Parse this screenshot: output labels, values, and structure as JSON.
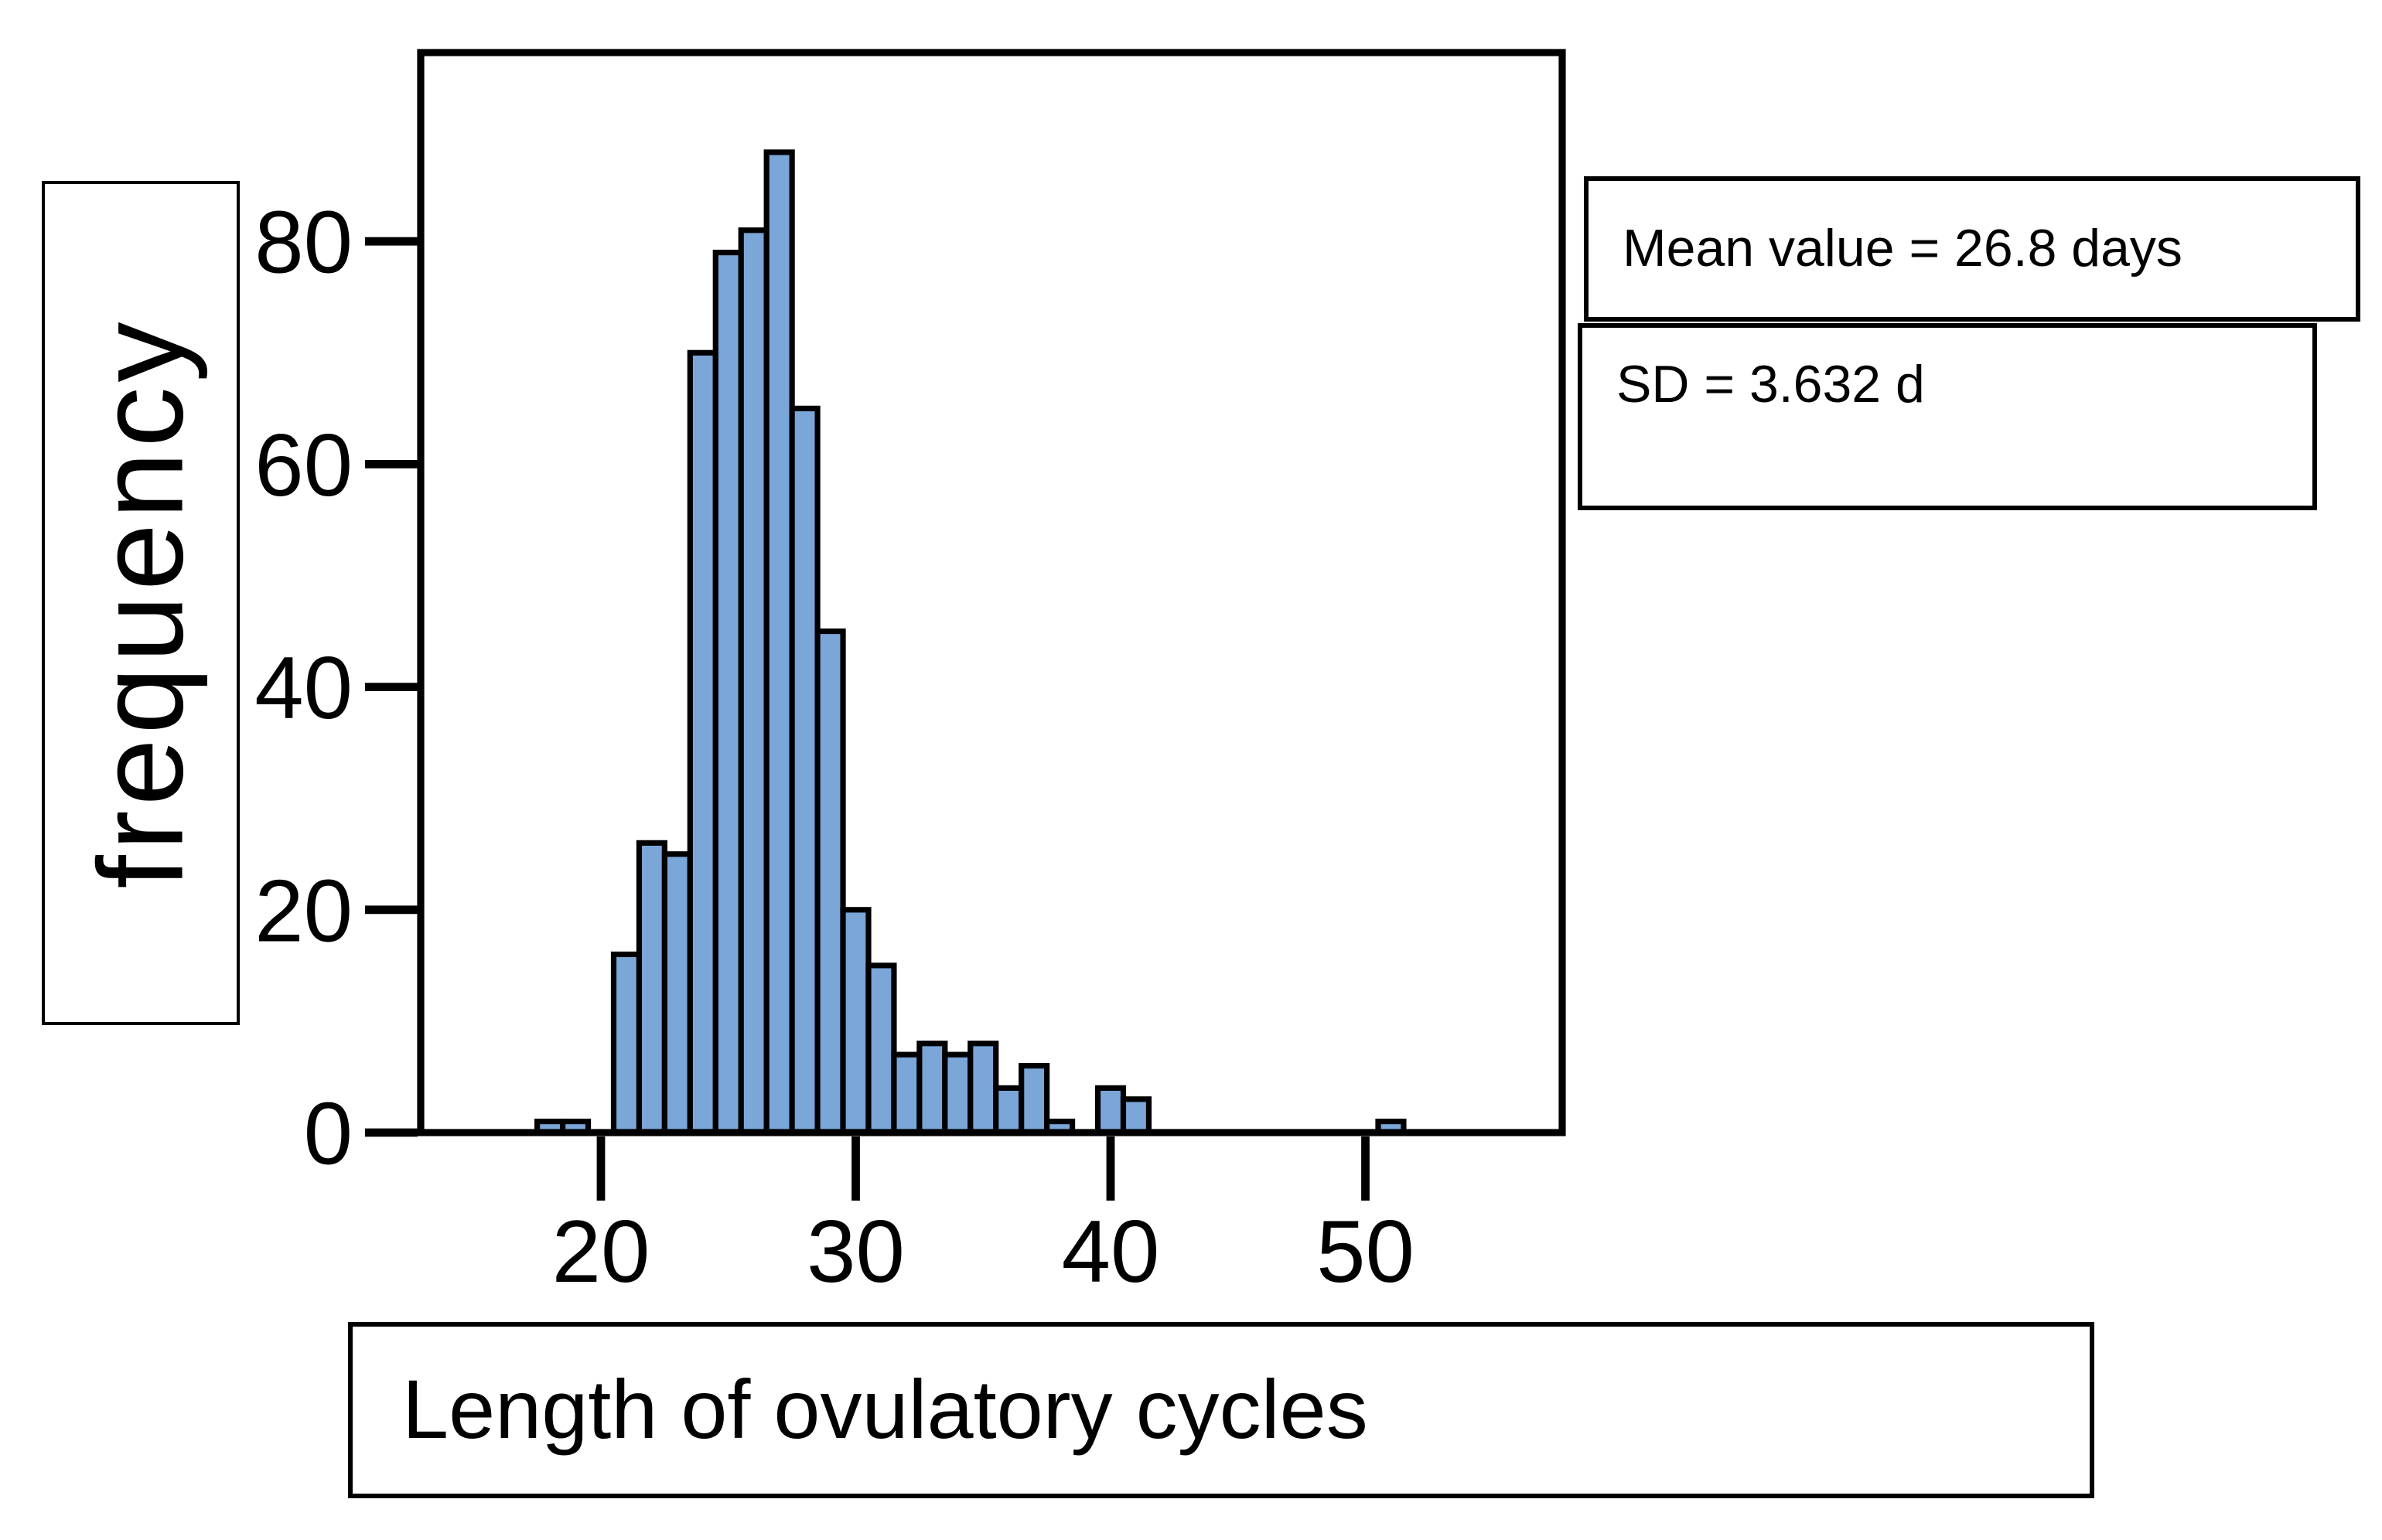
{
  "texts": {
    "y_axis_label": "frequency",
    "x_axis_label": "Length of ovulatory cycles",
    "mean_annotation": "Mean value = 26.8 days",
    "sd_annotation": "SD = 3.632 d"
  },
  "colors": {
    "bar_fill": "#7aa6d8",
    "bar_stroke": "#000000",
    "axis": "#000000",
    "background": "#ffffff"
  },
  "chart_data": {
    "type": "bar",
    "subtype": "histogram",
    "title": "",
    "xlabel": "Length of ovulatory cycles",
    "ylabel": "frequency",
    "bin_width": 1,
    "x_ticks": [
      20,
      30,
      40,
      50
    ],
    "y_ticks": [
      0,
      20,
      40,
      60,
      80
    ],
    "xlim": [
      13,
      57.7
    ],
    "ylim": [
      0,
      97
    ],
    "grid": false,
    "legend": false,
    "annotations": [
      "Mean value = 26.8 days",
      "SD = 3.632 d"
    ],
    "bins": [
      {
        "x": 18,
        "count": 1
      },
      {
        "x": 19,
        "count": 1
      },
      {
        "x": 20,
        "count": 0
      },
      {
        "x": 21,
        "count": 16
      },
      {
        "x": 22,
        "count": 26
      },
      {
        "x": 23,
        "count": 25
      },
      {
        "x": 24,
        "count": 70
      },
      {
        "x": 25,
        "count": 79
      },
      {
        "x": 26,
        "count": 81
      },
      {
        "x": 27,
        "count": 88
      },
      {
        "x": 28,
        "count": 65
      },
      {
        "x": 29,
        "count": 45
      },
      {
        "x": 30,
        "count": 20
      },
      {
        "x": 31,
        "count": 15
      },
      {
        "x": 32,
        "count": 7
      },
      {
        "x": 33,
        "count": 8
      },
      {
        "x": 34,
        "count": 7
      },
      {
        "x": 35,
        "count": 8
      },
      {
        "x": 36,
        "count": 4
      },
      {
        "x": 37,
        "count": 6
      },
      {
        "x": 38,
        "count": 1
      },
      {
        "x": 39,
        "count": 0
      },
      {
        "x": 40,
        "count": 4
      },
      {
        "x": 41,
        "count": 3
      },
      {
        "x": 51,
        "count": 1
      }
    ]
  }
}
